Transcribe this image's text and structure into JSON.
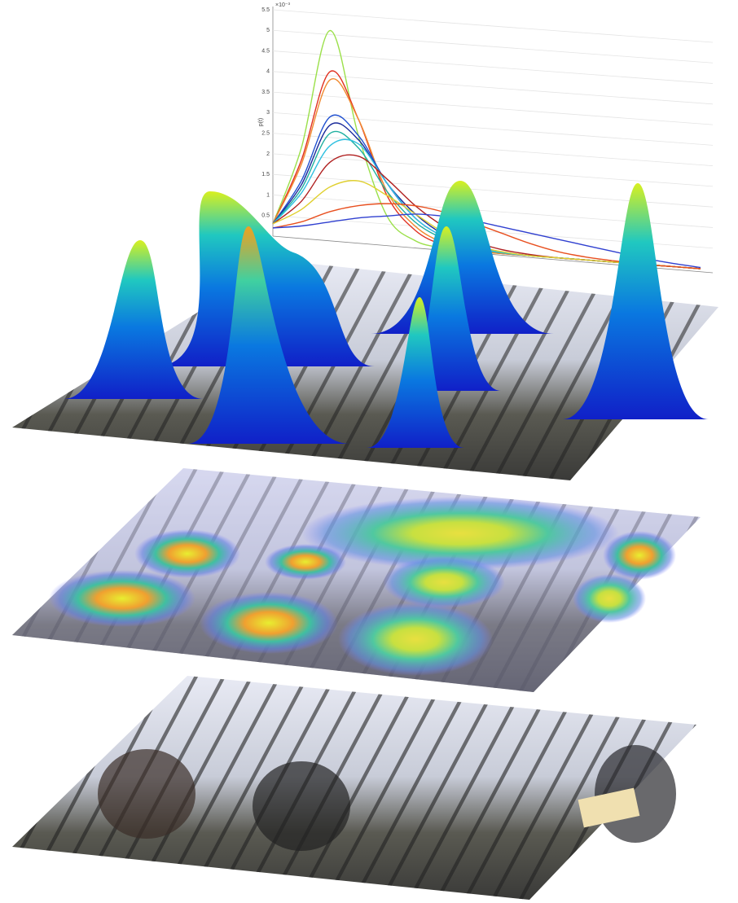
{
  "chart_data": {
    "type": "line",
    "y_label": "p(t)",
    "y_exponent": "×10⁻³",
    "categories": [
      null,
      null,
      null,
      null,
      null,
      null,
      null,
      null,
      null,
      null,
      null,
      null,
      null,
      null,
      null,
      null
    ],
    "ylim": [
      0,
      5.5
    ],
    "yticks": [
      0.5,
      1,
      1.5,
      2,
      2.5,
      3,
      3.5,
      4,
      4.5,
      5,
      5.5
    ],
    "grid": true,
    "series": [
      {
        "color": "#9be04a",
        "values": [
          0.3,
          2.2,
          5.1,
          2.6,
          0.7,
          0.15,
          0.03,
          0,
          0,
          0,
          0,
          0,
          0,
          0,
          0,
          0
        ]
      },
      {
        "color": "#e03020",
        "values": [
          0.3,
          1.9,
          4.1,
          3.0,
          1.2,
          0.4,
          0.1,
          0.02,
          0,
          0,
          0,
          0,
          0,
          0,
          0,
          0
        ]
      },
      {
        "color": "#f08a30",
        "values": [
          0.3,
          1.8,
          3.9,
          3.0,
          1.3,
          0.5,
          0.15,
          0.04,
          0,
          0,
          0,
          0,
          0,
          0,
          0,
          0
        ]
      },
      {
        "color": "#2050d0",
        "values": [
          0.3,
          1.4,
          3.0,
          2.6,
          1.5,
          0.7,
          0.3,
          0.1,
          0.03,
          0,
          0,
          0,
          0,
          0,
          0,
          0
        ]
      },
      {
        "color": "#1a2a9a",
        "values": [
          0.3,
          1.3,
          2.8,
          2.5,
          1.5,
          0.8,
          0.35,
          0.12,
          0.04,
          0,
          0,
          0,
          0,
          0,
          0,
          0
        ]
      },
      {
        "color": "#20b0a0",
        "values": [
          0.3,
          1.2,
          2.6,
          2.3,
          1.3,
          0.6,
          0.25,
          0.08,
          0.02,
          0,
          0,
          0,
          0,
          0,
          0,
          0
        ]
      },
      {
        "color": "#30c0e0",
        "values": [
          0.3,
          1.1,
          2.3,
          2.4,
          1.5,
          0.7,
          0.3,
          0.1,
          0.03,
          0,
          0,
          0,
          0,
          0,
          0,
          0
        ]
      },
      {
        "color": "#b02020",
        "values": [
          0.3,
          0.9,
          1.9,
          2.1,
          1.6,
          1.0,
          0.55,
          0.25,
          0.1,
          0.03,
          0,
          0,
          0,
          0,
          0,
          0
        ]
      },
      {
        "color": "#e0d030",
        "values": [
          0.3,
          0.7,
          1.3,
          1.5,
          1.2,
          0.8,
          0.4,
          0.15,
          0.05,
          0,
          0,
          0,
          0,
          0,
          0,
          0
        ]
      },
      {
        "color": "#e85020",
        "values": [
          0.2,
          0.4,
          0.7,
          0.9,
          1.0,
          1.0,
          0.9,
          0.7,
          0.5,
          0.3,
          0.15,
          0.07,
          0.03,
          0,
          0,
          0
        ]
      },
      {
        "color": "#3040d0",
        "values": [
          0.2,
          0.3,
          0.45,
          0.6,
          0.7,
          0.8,
          0.8,
          0.75,
          0.65,
          0.55,
          0.45,
          0.35,
          0.25,
          0.15,
          0.08,
          0.03
        ]
      }
    ]
  }
}
